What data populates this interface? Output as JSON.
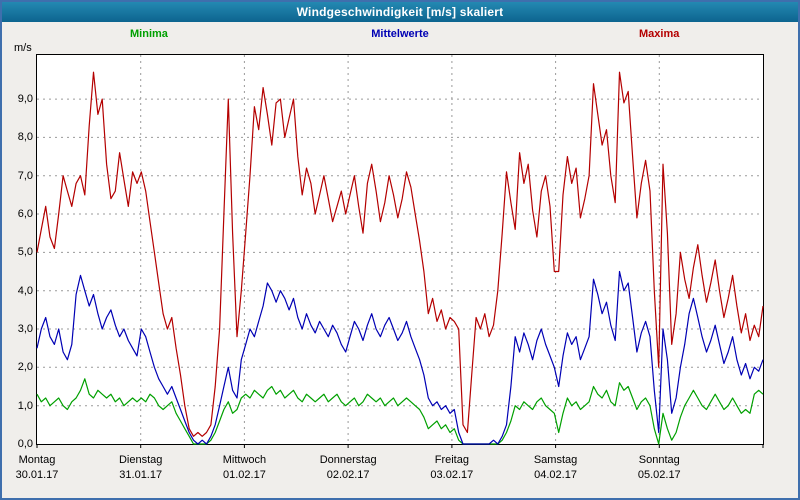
{
  "window": {
    "title": "Windgeschwindigkeit [m/s] skaliert"
  },
  "chart_data": {
    "type": "line",
    "title": "Windgeschwindigkeit [m/s] skaliert",
    "ylabel": "m/s",
    "ylim": [
      0,
      10
    ],
    "yticks": [
      "0,0",
      "1,0",
      "2,0",
      "3,0",
      "4,0",
      "5,0",
      "6,0",
      "7,0",
      "8,0",
      "9,0"
    ],
    "grid": true,
    "legend_position": "top",
    "x_unit": "hours over 7 days",
    "categories": [
      {
        "day": "Montag",
        "date": "30.01.17"
      },
      {
        "day": "Dienstag",
        "date": "31.01.17"
      },
      {
        "day": "Mittwoch",
        "date": "01.02.17"
      },
      {
        "day": "Donnerstag",
        "date": "02.02.17"
      },
      {
        "day": "Freitag",
        "date": "03.02.17"
      },
      {
        "day": "Samstag",
        "date": "04.02.17"
      },
      {
        "day": "Sonntag",
        "date": "05.02.17"
      }
    ],
    "series": [
      {
        "name": "Minima",
        "color": "#00a000",
        "values": [
          1.3,
          1.1,
          1.2,
          1.0,
          1.1,
          1.2,
          1.0,
          0.9,
          1.1,
          1.2,
          1.4,
          1.7,
          1.3,
          1.2,
          1.4,
          1.3,
          1.2,
          1.3,
          1.1,
          1.2,
          1.0,
          1.1,
          1.2,
          1.1,
          1.2,
          1.1,
          1.3,
          1.2,
          1.0,
          0.9,
          1.0,
          1.1,
          0.8,
          0.6,
          0.4,
          0.2,
          0.0,
          0.0,
          0.0,
          0.0,
          0.1,
          0.3,
          0.6,
          0.9,
          1.1,
          0.8,
          0.9,
          1.2,
          1.3,
          1.2,
          1.4,
          1.3,
          1.2,
          1.4,
          1.5,
          1.3,
          1.4,
          1.2,
          1.3,
          1.4,
          1.2,
          1.1,
          1.3,
          1.2,
          1.1,
          1.2,
          1.3,
          1.1,
          1.2,
          1.3,
          1.1,
          1.0,
          1.1,
          1.2,
          1.0,
          1.1,
          1.3,
          1.2,
          1.1,
          1.2,
          1.0,
          1.1,
          1.2,
          1.0,
          1.1,
          1.2,
          1.1,
          1.0,
          0.9,
          0.7,
          0.4,
          0.5,
          0.6,
          0.4,
          0.5,
          0.3,
          0.4,
          0.1,
          0.0,
          0.0,
          0.0,
          0.0,
          0.0,
          0.0,
          0.0,
          0.0,
          0.0,
          0.1,
          0.3,
          0.6,
          1.0,
          0.9,
          1.1,
          1.0,
          0.9,
          1.1,
          1.2,
          1.0,
          0.9,
          0.8,
          0.3,
          0.8,
          1.2,
          1.0,
          1.1,
          0.9,
          1.0,
          1.1,
          1.5,
          1.3,
          1.2,
          1.4,
          1.1,
          1.0,
          1.6,
          1.4,
          1.5,
          1.2,
          0.9,
          1.1,
          1.2,
          1.0,
          0.4,
          0.0,
          0.8,
          0.4,
          0.1,
          0.3,
          0.7,
          1.0,
          1.2,
          1.4,
          1.2,
          1.0,
          0.9,
          1.1,
          1.3,
          1.1,
          0.9,
          1.0,
          1.2,
          1.0,
          0.8,
          0.9,
          0.8,
          1.3,
          1.4,
          1.3
        ]
      },
      {
        "name": "Mittelwerte",
        "color": "#0000b4",
        "values": [
          2.5,
          3.0,
          3.3,
          2.8,
          2.6,
          3.0,
          2.4,
          2.2,
          2.6,
          3.9,
          4.4,
          4.0,
          3.6,
          3.9,
          3.4,
          3.0,
          3.3,
          3.5,
          3.1,
          2.8,
          3.0,
          2.7,
          2.5,
          2.3,
          3.0,
          2.8,
          2.4,
          2.0,
          1.7,
          1.5,
          1.3,
          1.5,
          1.2,
          0.9,
          0.6,
          0.3,
          0.1,
          0.0,
          0.1,
          0.0,
          0.2,
          0.5,
          1.0,
          1.5,
          2.0,
          1.4,
          1.2,
          2.2,
          2.6,
          3.0,
          2.8,
          3.2,
          3.6,
          4.2,
          4.0,
          3.7,
          4.0,
          3.8,
          3.5,
          3.8,
          3.3,
          3.0,
          3.4,
          3.1,
          2.9,
          3.2,
          3.0,
          2.8,
          3.1,
          2.9,
          2.6,
          2.4,
          2.8,
          3.2,
          3.0,
          2.7,
          3.1,
          3.4,
          3.0,
          2.8,
          3.1,
          3.3,
          3.0,
          2.7,
          2.9,
          3.2,
          2.8,
          2.5,
          2.2,
          1.8,
          1.2,
          1.0,
          1.1,
          0.9,
          1.0,
          0.8,
          0.9,
          0.3,
          0.0,
          0.0,
          0.0,
          0.0,
          0.0,
          0.0,
          0.0,
          0.1,
          0.0,
          0.2,
          0.5,
          1.5,
          2.8,
          2.4,
          2.9,
          2.6,
          2.2,
          2.7,
          3.0,
          2.6,
          2.3,
          2.0,
          1.5,
          2.3,
          2.9,
          2.6,
          2.8,
          2.2,
          2.5,
          2.8,
          4.3,
          3.9,
          3.4,
          3.7,
          3.1,
          2.7,
          4.5,
          4.0,
          4.2,
          3.3,
          2.4,
          2.9,
          3.2,
          2.8,
          1.4,
          0.3,
          3.0,
          2.2,
          0.8,
          1.2,
          2.0,
          2.6,
          3.4,
          3.8,
          3.3,
          2.8,
          2.4,
          2.7,
          3.1,
          2.6,
          2.1,
          2.4,
          2.8,
          2.2,
          1.8,
          2.1,
          1.7,
          2.0,
          1.9,
          2.2
        ]
      },
      {
        "name": "Maxima",
        "color": "#b40000",
        "values": [
          5.0,
          5.6,
          6.2,
          5.4,
          5.1,
          6.0,
          7.0,
          6.6,
          6.2,
          6.8,
          7.0,
          6.5,
          8.3,
          9.7,
          8.6,
          9.0,
          7.3,
          6.4,
          6.6,
          7.6,
          6.9,
          6.2,
          7.1,
          6.8,
          7.1,
          6.6,
          5.8,
          5.0,
          4.2,
          3.4,
          3.0,
          3.3,
          2.5,
          1.8,
          1.0,
          0.4,
          0.2,
          0.3,
          0.2,
          0.3,
          0.5,
          1.5,
          3.0,
          6.0,
          9.0,
          5.5,
          2.8,
          4.0,
          5.5,
          7.0,
          8.8,
          8.2,
          9.3,
          8.6,
          7.8,
          8.9,
          9.0,
          8.0,
          8.5,
          9.0,
          7.5,
          6.5,
          7.2,
          6.8,
          6.0,
          6.5,
          7.0,
          6.4,
          5.8,
          6.2,
          6.6,
          6.0,
          6.5,
          7.0,
          6.2,
          5.5,
          6.8,
          7.3,
          6.6,
          5.8,
          6.3,
          7.0,
          6.5,
          5.9,
          6.4,
          7.1,
          6.7,
          6.0,
          5.3,
          4.5,
          3.4,
          3.8,
          3.2,
          3.5,
          3.0,
          3.3,
          3.2,
          3.0,
          0.5,
          0.3,
          1.8,
          3.3,
          3.0,
          3.4,
          2.8,
          3.1,
          4.0,
          5.5,
          7.1,
          6.3,
          5.6,
          7.6,
          6.8,
          7.3,
          6.1,
          5.4,
          6.6,
          7.0,
          6.2,
          4.5,
          4.5,
          6.5,
          7.5,
          6.8,
          7.2,
          5.9,
          6.4,
          7.0,
          9.4,
          8.6,
          7.8,
          8.2,
          7.0,
          6.3,
          9.7,
          8.9,
          9.2,
          7.5,
          5.9,
          6.8,
          7.4,
          6.6,
          4.0,
          2.0,
          7.3,
          5.5,
          2.6,
          3.4,
          5.0,
          4.3,
          3.8,
          4.6,
          5.2,
          4.4,
          3.7,
          4.2,
          4.8,
          4.0,
          3.3,
          3.8,
          4.4,
          3.6,
          2.9,
          3.4,
          2.7,
          3.1,
          2.8,
          3.6
        ]
      }
    ]
  }
}
